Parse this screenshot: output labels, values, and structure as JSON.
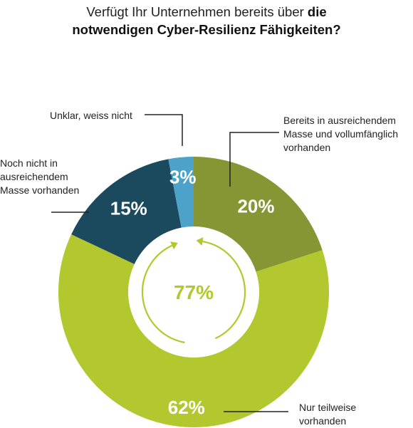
{
  "title": {
    "part1": "Verfügt Ihr Unternehmen bereits über ",
    "part2": "die",
    "line2": "notwendigen Cyber-Resilienz Fähigkeiten?"
  },
  "center_label": "77%",
  "chart_data": {
    "type": "donut",
    "title": "Verfügt Ihr Unternehmen bereits über die notwendigen Cyber-Resilienz Fähigkeiten?",
    "categories": [
      "Bereits in ausreichendem Masse und vollumfänglich vorhanden",
      "Nur teilweise vorhanden",
      "Noch nicht in ausreichendem Masse vorhanden",
      "Unklar, weiss nicht"
    ],
    "values": [
      20,
      62,
      15,
      3
    ],
    "value_labels": [
      "20%",
      "62%",
      "15%",
      "3%"
    ],
    "colors": [
      "#879634",
      "#b3c72e",
      "#1b4a5e",
      "#4ca2c9"
    ],
    "center_label": "77%",
    "center_color": "#b3c72e"
  },
  "labels": {
    "bereits": [
      "Bereits in ausreichendem",
      "Masse und vollumfänglich",
      "vorhanden"
    ],
    "teilweise": [
      "Nur teilweise",
      "vorhanden"
    ],
    "noch_nicht": [
      "Noch nicht in",
      "ausreichendem",
      "Masse vorhanden"
    ],
    "unklar": [
      "Unklar, weiss nicht"
    ]
  }
}
